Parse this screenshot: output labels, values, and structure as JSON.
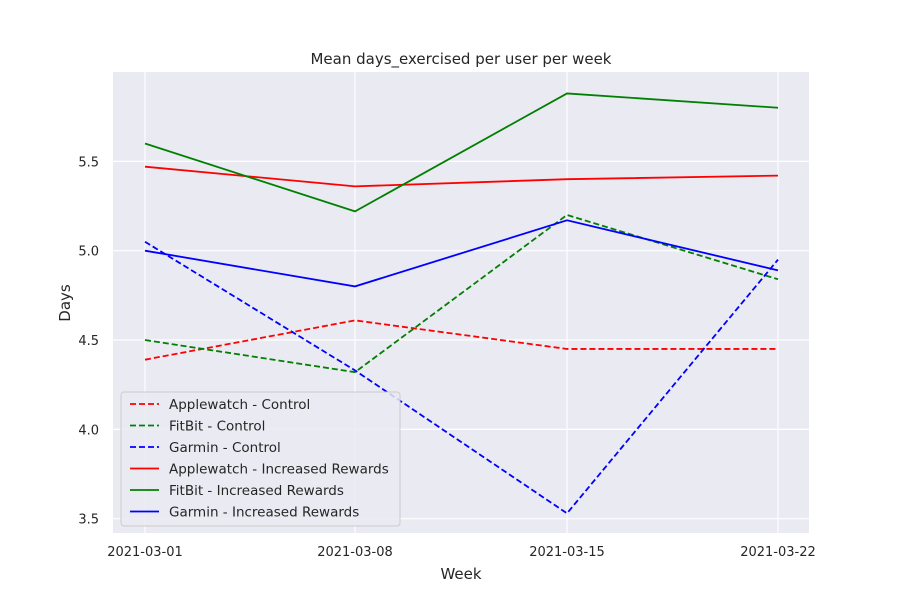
{
  "chart_data": {
    "type": "line",
    "title": "Mean days_exercised per user per week",
    "xlabel": "Week",
    "ylabel": "Days",
    "x": [
      "2021-03-01",
      "2021-03-08",
      "2021-03-15",
      "2021-03-22"
    ],
    "ylim": [
      3.42,
      6.0
    ],
    "yticks": [
      "3.5",
      "4.0",
      "4.5",
      "5.0",
      "5.5"
    ],
    "grid": true,
    "legend_position": "lower-left",
    "series": [
      {
        "name": "Applewatch - Control",
        "color": "#ff0000",
        "style": "dashed",
        "values": [
          4.39,
          4.61,
          4.45,
          4.45
        ]
      },
      {
        "name": "FitBit - Control",
        "color": "#008000",
        "style": "dashed",
        "values": [
          4.5,
          4.32,
          5.2,
          4.84
        ]
      },
      {
        "name": "Garmin - Control",
        "color": "#0000ff",
        "style": "dashed",
        "values": [
          5.05,
          4.33,
          3.53,
          4.95
        ]
      },
      {
        "name": "Applewatch - Increased Rewards",
        "color": "#ff0000",
        "style": "solid",
        "values": [
          5.47,
          5.36,
          5.4,
          5.42
        ]
      },
      {
        "name": "FitBit - Increased Rewards",
        "color": "#008000",
        "style": "solid",
        "values": [
          5.6,
          5.22,
          5.88,
          5.8
        ]
      },
      {
        "name": "Garmin - Increased Rewards",
        "color": "#0000ff",
        "style": "solid",
        "values": [
          5.0,
          4.8,
          5.17,
          4.89
        ]
      }
    ]
  }
}
